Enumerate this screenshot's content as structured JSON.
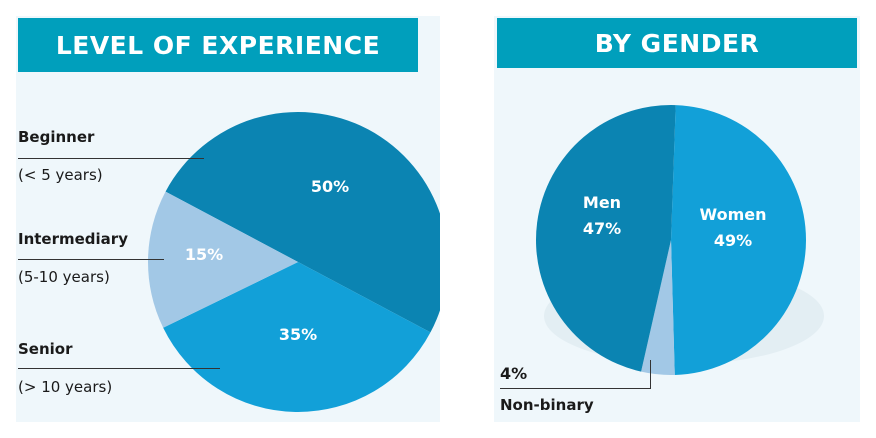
{
  "chart_data": [
    {
      "type": "pie",
      "title": "LEVEL OF EXPERIENCE",
      "slices": [
        {
          "name": "Beginner",
          "sub": "(< 5 years)",
          "value": 50,
          "label": "50%",
          "color": "#0b84b2"
        },
        {
          "name": "Senior",
          "sub": "(> 10 years)",
          "value": 35,
          "label": "35%",
          "color": "#12a0d8"
        },
        {
          "name": "Intermediary",
          "sub": "(5-10 years)",
          "value": 15,
          "label": "15%",
          "color": "#a2c8e6"
        }
      ]
    },
    {
      "type": "pie",
      "title": "BY GENDER",
      "slices": [
        {
          "name": "Women",
          "value": 49,
          "label": "49%",
          "color": "#12a0d8"
        },
        {
          "name": "Non-binary",
          "value": 4,
          "label": "4%",
          "color": "#a2c8e6"
        },
        {
          "name": "Men",
          "value": 47,
          "label": "47%",
          "color": "#0b84b2"
        }
      ]
    }
  ]
}
